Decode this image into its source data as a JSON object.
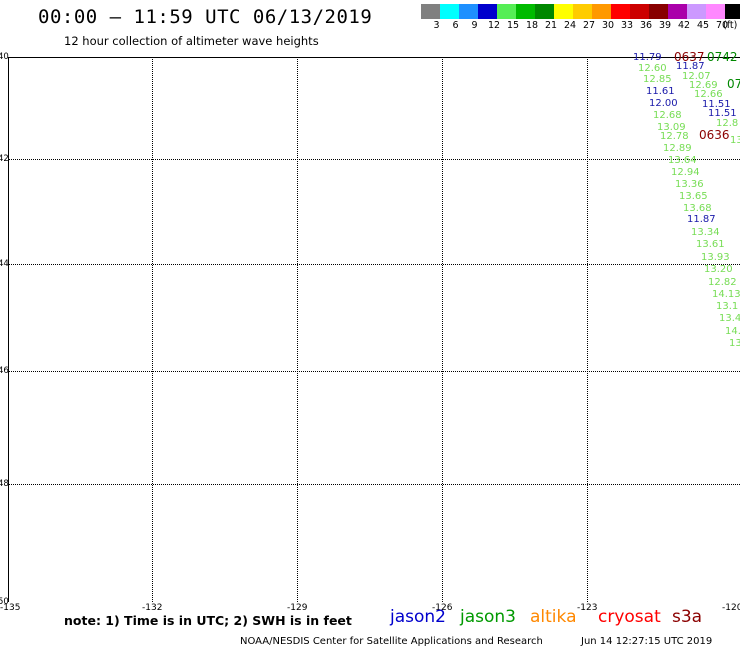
{
  "header": {
    "title": "00:00 – 11:59 UTC 06/13/2019",
    "subtitle": "12 hour collection of altimeter wave heights"
  },
  "color_scale": {
    "unit": "(ft)",
    "swatches": [
      {
        "label": "3",
        "color": "#808080"
      },
      {
        "label": "6",
        "color": "#00ffff"
      },
      {
        "label": "9",
        "color": "#1e90ff"
      },
      {
        "label": "12",
        "color": "#0000cd"
      },
      {
        "label": "15",
        "color": "#55ee55"
      },
      {
        "label": "18",
        "color": "#00bb00"
      },
      {
        "label": "21",
        "color": "#008800"
      },
      {
        "label": "24",
        "color": "#ffff00"
      },
      {
        "label": "27",
        "color": "#ffcc00"
      },
      {
        "label": "30",
        "color": "#ff9900"
      },
      {
        "label": "33",
        "color": "#ff0000"
      },
      {
        "label": "36",
        "color": "#cc0000"
      },
      {
        "label": "39",
        "color": "#880000"
      },
      {
        "label": "42",
        "color": "#aa00aa"
      },
      {
        "label": "45",
        "color": "#cc99ff"
      },
      {
        "label": "70",
        "color": "#ff88ff"
      },
      {
        "label": "",
        "color": "#000000"
      }
    ]
  },
  "map": {
    "y_ticks": [
      "40",
      "42",
      "44",
      "46",
      "48",
      "50"
    ],
    "x_ticks": [
      "-135",
      "-132",
      "-129",
      "-126",
      "-123",
      "-120"
    ],
    "observations": [
      {
        "v": "11.79",
        "k": "b"
      },
      {
        "v": "12.60",
        "k": "c"
      },
      {
        "v": "12.85",
        "k": "c"
      },
      {
        "v": "11.61",
        "k": "b"
      },
      {
        "v": "12.00",
        "k": "b"
      },
      {
        "v": "12.68",
        "k": "c"
      },
      {
        "v": "13.09",
        "k": "c"
      },
      {
        "v": "12.78",
        "k": "c"
      },
      {
        "v": "12.89",
        "k": "c"
      },
      {
        "v": "13.64",
        "k": "c"
      },
      {
        "v": "12.94",
        "k": "c"
      },
      {
        "v": "13.36",
        "k": "c"
      },
      {
        "v": "13.65",
        "k": "c"
      },
      {
        "v": "13.68",
        "k": "c"
      },
      {
        "v": "11.87",
        "k": "b"
      },
      {
        "v": "13.34",
        "k": "c"
      },
      {
        "v": "13.61",
        "k": "c"
      },
      {
        "v": "13.93",
        "k": "c"
      },
      {
        "v": "13.20",
        "k": "c"
      },
      {
        "v": "12.82",
        "k": "c"
      },
      {
        "v": "14.13",
        "k": "c"
      },
      {
        "v": "13.1",
        "k": "c"
      },
      {
        "v": "13.4",
        "k": "c"
      },
      {
        "v": "14.",
        "k": "c"
      },
      {
        "v": "13",
        "k": "c"
      },
      {
        "v": "11.87",
        "k": "b"
      },
      {
        "v": "12.07",
        "k": "c"
      },
      {
        "v": "12.69",
        "k": "c"
      },
      {
        "v": "12.66",
        "k": "c"
      },
      {
        "v": "11.51",
        "k": "b"
      },
      {
        "v": "11.51",
        "k": "b"
      },
      {
        "v": "12.8",
        "k": "c"
      },
      {
        "v": "13",
        "k": "c"
      }
    ],
    "time_labels": [
      {
        "text": "0637",
        "color": "#8b0000"
      },
      {
        "text": "0742",
        "color": "#008800"
      },
      {
        "text": "07",
        "color": "#008800"
      },
      {
        "text": "0636",
        "color": "#8b0000"
      }
    ],
    "obs_colors": {
      "c": "#77dd55",
      "b": "#1a1aaa"
    }
  },
  "footer": {
    "note": "note: 1) Time is in UTC; 2) SWH is in feet",
    "satellites": [
      {
        "name": "jason2",
        "color": "#0000cc"
      },
      {
        "name": "jason3",
        "color": "#009900"
      },
      {
        "name": "altika",
        "color": "#ff8800"
      },
      {
        "name": "cryosat",
        "color": "#ff0000"
      },
      {
        "name": "s3a",
        "color": "#8b0000"
      }
    ],
    "credit": "NOAA/NESDIS Center for Satellite Applications and Research",
    "generated": "Jun 14 12:27:15 UTC 2019"
  }
}
